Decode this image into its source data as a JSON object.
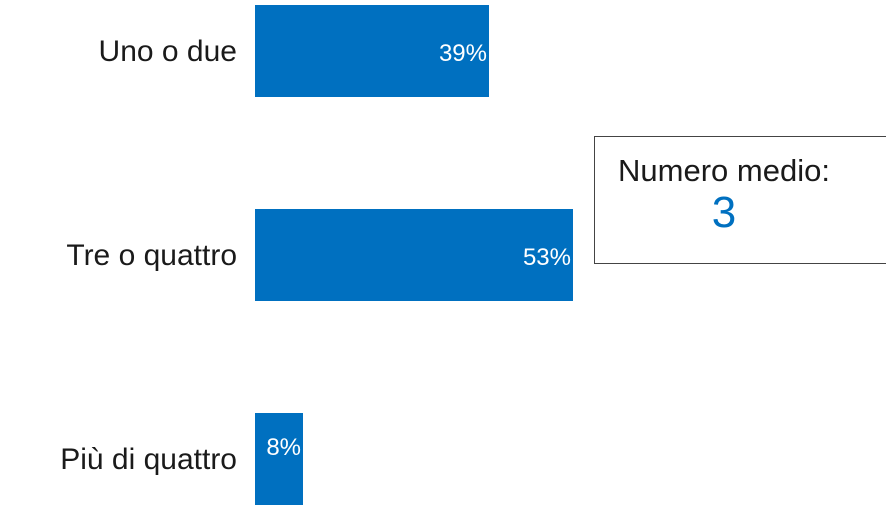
{
  "chart_data": {
    "type": "bar",
    "orientation": "horizontal",
    "categories": [
      "Uno o due",
      "Tre o quattro",
      "Più di quattro"
    ],
    "values": [
      39,
      53,
      8
    ],
    "value_labels": [
      "39%",
      "53%",
      "8%"
    ],
    "unit": "%",
    "xlim": [
      0,
      100
    ],
    "bar_color": "#0070c0",
    "grid": false,
    "legend": "none"
  },
  "callout": {
    "label": "Numero medio:",
    "value": "3",
    "value_color": "#0070c0"
  }
}
